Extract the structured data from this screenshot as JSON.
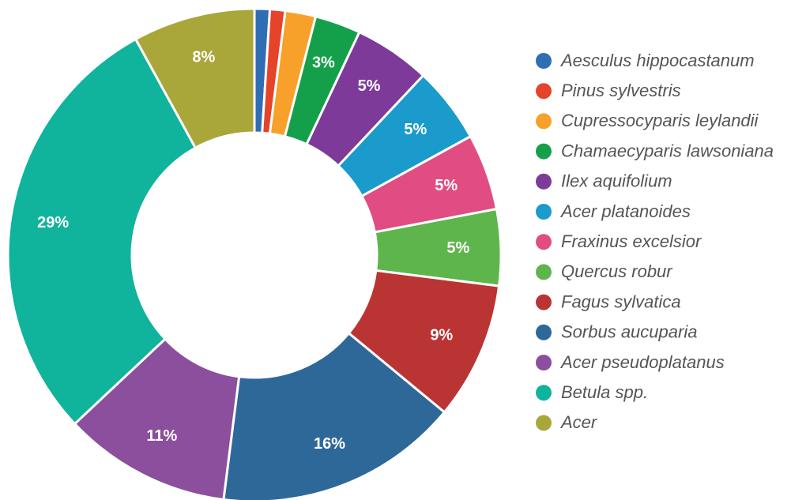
{
  "chart_data": {
    "type": "donut",
    "categories": [
      "Aesculus hippocastanum",
      "Pinus sylvestris",
      "Cupressocyparis leylandii",
      "Chamaecyparis lawsoniana",
      "Ilex aquifolium",
      "Acer platanoides",
      "Fraxinus excelsior",
      "Quercus robur",
      "Fagus sylvatica",
      "Sorbus aucuparia",
      "Acer pseudoplatanus",
      "Betula spp.",
      "Acer"
    ],
    "values": [
      1,
      1,
      2,
      3,
      5,
      5,
      5,
      5,
      9,
      16,
      11,
      29,
      8
    ],
    "value_labels": [
      null,
      null,
      null,
      "3%",
      "5%",
      "5%",
      "5%",
      "5%",
      "9%",
      "16%",
      "11%",
      "29%",
      "8%"
    ],
    "colors": [
      "#2f6db5",
      "#e5432a",
      "#f7a12a",
      "#14a04b",
      "#7d3a98",
      "#1a9bcb",
      "#e14c82",
      "#5eb54c",
      "#bb3434",
      "#2e6898",
      "#8b4f9e",
      "#10b39c",
      "#a9a73a"
    ],
    "legend": "right"
  }
}
